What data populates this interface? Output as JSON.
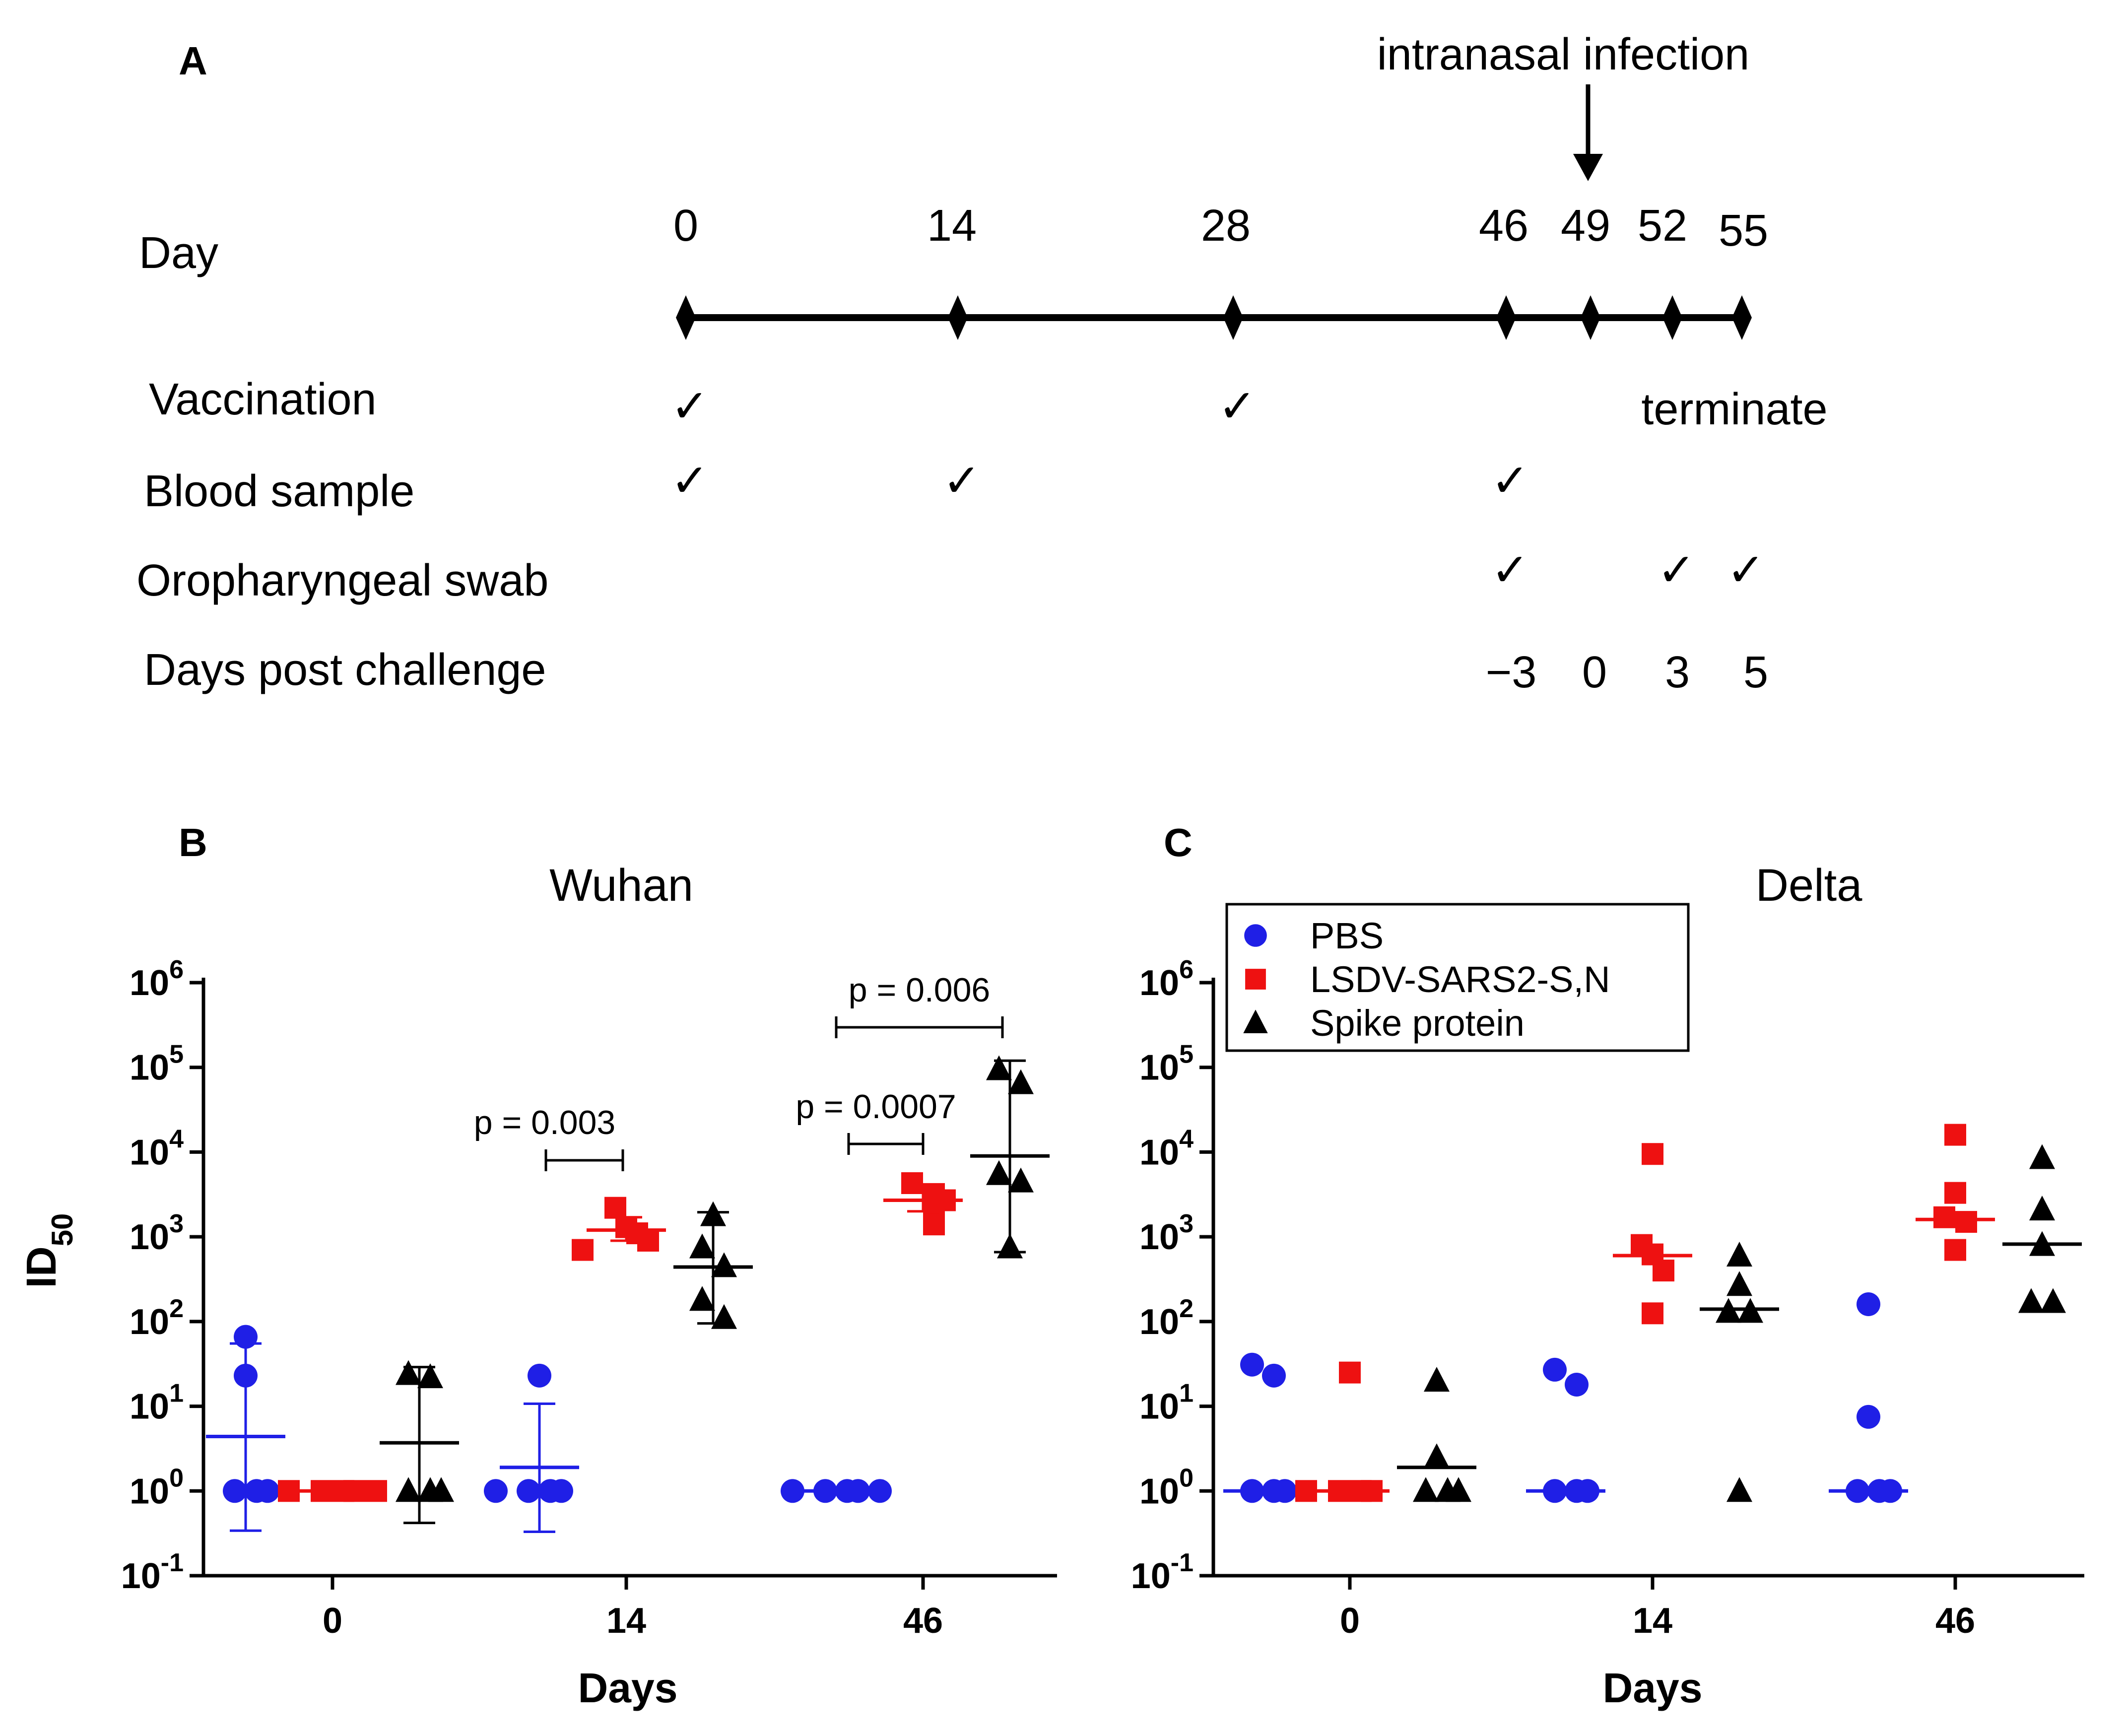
{
  "panels": {
    "a": "A",
    "b": "B",
    "c": "C"
  },
  "colors": {
    "pbs": "#1f1fe6",
    "lsdv": "#ee1111",
    "spike": "#000000",
    "axis": "#000000"
  },
  "timeline": {
    "infection_label": "intranasal infection",
    "day_label": "Day",
    "days": [
      "0",
      "14",
      "28",
      "46",
      "49",
      "52",
      "55"
    ],
    "rows": {
      "vaccination": "Vaccination",
      "blood": "Blood sample",
      "swab": "Oropharyngeal swab",
      "dpc": "Days post challenge"
    },
    "terminate": "terminate",
    "check_glyph": "✓",
    "vaccination_days": [
      "0",
      "28"
    ],
    "blood_days": [
      "0",
      "14",
      "46"
    ],
    "swab_days": [
      "46",
      "52",
      "55"
    ],
    "dpc_values": [
      "−3",
      "0",
      "3",
      "5"
    ]
  },
  "legend": {
    "entries": [
      {
        "name": "PBS",
        "marker": "circle"
      },
      {
        "name": "LSDV-SARS2-S,N",
        "marker": "square"
      },
      {
        "name": "Spike protein",
        "marker": "triangle"
      }
    ]
  },
  "chart_data": [
    {
      "type": "scatter",
      "title": "Wuhan",
      "xlabel": "Days",
      "ylabel": "ID",
      "ylabel_sub": "50",
      "yscale": "log10",
      "ylim": [
        0.1,
        1000000
      ],
      "ytick_base": "10",
      "ytick_exponents": [
        "-1",
        "0",
        "1",
        "2",
        "3",
        "4",
        "5",
        "6"
      ],
      "categories": [
        "0",
        "14",
        "46"
      ],
      "series": [
        {
          "name": "PBS",
          "marker": "circle",
          "values": [
            [
              66,
              23,
              1,
              1,
              1
            ],
            [
              23,
              1,
              1,
              1,
              1
            ],
            [
              1,
              1,
              1,
              1,
              1
            ]
          ],
          "center": [
            4.4,
            1.9,
            1
          ],
          "err_upper": [
            55,
            10.7,
            null
          ],
          "err_lower": [
            0.34,
            0.33,
            null
          ]
        },
        {
          "name": "LSDV-SARS2-S,N",
          "marker": "square",
          "values": [
            [
              1,
              1,
              1,
              1,
              1
            ],
            [
              2200,
              1300,
              1100,
              900,
              700
            ],
            [
              4300,
              3200,
              2700,
              2200,
              1400
            ]
          ],
          "center": [
            1,
            1200,
            2700
          ],
          "err_upper": [
            null,
            1700,
            3600
          ],
          "err_lower": [
            null,
            900,
            2000
          ]
        },
        {
          "name": "Spike protein",
          "marker": "triangle",
          "values": [
            [
              24,
              22,
              1,
              1,
              1
            ],
            [
              1800,
              750,
              450,
              180,
              110
            ],
            [
              95000,
              65000,
              5500,
              4500,
              750
            ]
          ],
          "center": [
            3.7,
            440,
            9000
          ],
          "err_upper": [
            29,
            1950,
            120000
          ],
          "err_lower": [
            0.42,
            95,
            660
          ]
        }
      ],
      "brackets": [
        {
          "label": "p = 0.003",
          "x_from": "14",
          "x_to": "14"
        },
        {
          "label": "p = 0.0007",
          "x_from": "46",
          "x_to": "46"
        },
        {
          "label": "p = 0.006",
          "x_from": "46",
          "x_to": "46"
        }
      ]
    },
    {
      "type": "scatter",
      "title": "Delta",
      "xlabel": "Days",
      "yscale": "log10",
      "ylim": [
        0.1,
        1000000
      ],
      "ytick_base": "10",
      "ytick_exponents": [
        "-1",
        "0",
        "1",
        "2",
        "3",
        "4",
        "5",
        "6"
      ],
      "categories": [
        "0",
        "14",
        "46"
      ],
      "series": [
        {
          "name": "PBS",
          "marker": "circle",
          "values": [
            [
              31,
              23,
              1,
              1,
              1
            ],
            [
              27,
              18,
              1,
              1,
              1
            ],
            [
              160,
              7.5,
              1,
              1,
              1
            ]
          ],
          "center": [
            1,
            1,
            1
          ]
        },
        {
          "name": "LSDV-SARS2-S,N",
          "marker": "square",
          "values": [
            [
              25,
              1,
              1,
              1,
              1
            ],
            [
              9500,
              800,
              620,
              400,
              125
            ],
            [
              16000,
              3300,
              1700,
              1500,
              700
            ]
          ],
          "center": [
            1,
            600,
            1600
          ]
        },
        {
          "name": "Spike protein",
          "marker": "triangle",
          "values": [
            [
              20,
              2.5,
              1,
              1,
              1
            ],
            [
              600,
              270,
              130,
              130,
              1
            ],
            [
              8500,
              2100,
              800,
              170,
              170
            ]
          ],
          "center": [
            1.9,
            140,
            820
          ]
        }
      ]
    }
  ]
}
